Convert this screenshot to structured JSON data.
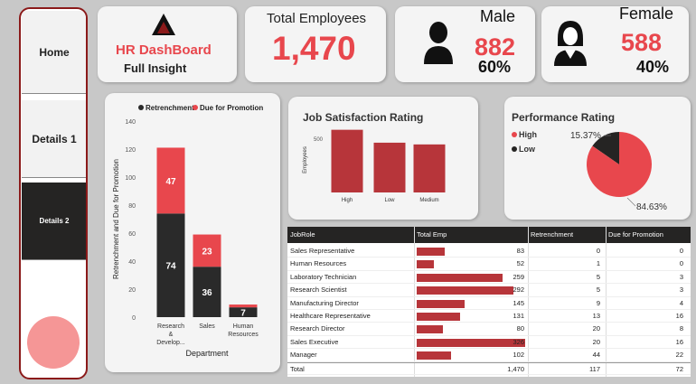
{
  "nav": {
    "items": [
      {
        "label": "Home"
      },
      {
        "label": "Details 1"
      },
      {
        "label": "Details 2"
      }
    ]
  },
  "brand": {
    "title": "HR DashBoard",
    "subtitle": "Full Insight"
  },
  "kpi_total": {
    "title": "Total Employees",
    "value": "1,470"
  },
  "kpi_male": {
    "title": "Male",
    "value": "882",
    "pct": "60%"
  },
  "kpi_female": {
    "title": "Female",
    "value": "588",
    "pct": "40%"
  },
  "colors": {
    "accent_red": "#e8474d",
    "dark": "#252423",
    "bar_red": "#b7353a"
  },
  "chart_data": [
    {
      "type": "bar",
      "stacked": true,
      "legend": [
        "Retrenchment",
        "Due for Promotion"
      ],
      "xlabel": "Department",
      "ylabel": "Retrenchment and Due for Promotion",
      "ylim": [
        0,
        140
      ],
      "yticks": [
        "0",
        "20",
        "40",
        "60",
        "80",
        "100",
        "120",
        "140"
      ],
      "categories": [
        "Research & Develop...",
        "Sales",
        "Human Resources"
      ],
      "series": [
        {
          "name": "Retrenchment",
          "values": [
            74,
            36,
            7
          ],
          "color": "#2a2a2a"
        },
        {
          "name": "Due for Promotion",
          "values": [
            47,
            23,
            2
          ],
          "color": "#e8474d"
        }
      ],
      "data_labels": [
        {
          "series": 0,
          "index": 0,
          "text": "74"
        },
        {
          "series": 1,
          "index": 0,
          "text": "47"
        },
        {
          "series": 0,
          "index": 1,
          "text": "36"
        },
        {
          "series": 1,
          "index": 1,
          "text": "23"
        },
        {
          "series": 0,
          "index": 2,
          "text": "7"
        }
      ]
    },
    {
      "type": "bar",
      "title": "Job Satisfaction Rating",
      "ylabel": "Employees",
      "ylim": [
        0,
        650
      ],
      "yticks": [
        "500"
      ],
      "categories": [
        "High",
        "Low",
        "Medium"
      ],
      "values": [
        578,
        459,
        443
      ]
    },
    {
      "type": "pie",
      "title": "Performance Rating",
      "legend": [
        "High",
        "Low"
      ],
      "categories": [
        "High",
        "Low"
      ],
      "values": [
        84.63,
        15.37
      ],
      "labels": [
        "84.63%",
        "15.37%"
      ],
      "colors": [
        "#e8474d",
        "#252423"
      ]
    }
  ],
  "table": {
    "headers": [
      "JobRole",
      "Total Emp",
      "Retrenchment",
      "Due for Promotion"
    ],
    "rows": [
      {
        "role": "Sales Representative",
        "total": "83",
        "ret": "0",
        "due": "0",
        "totnum": 83
      },
      {
        "role": "Human Resources",
        "total": "52",
        "ret": "1",
        "due": "0",
        "totnum": 52
      },
      {
        "role": "Laboratory Technician",
        "total": "259",
        "ret": "5",
        "due": "3",
        "totnum": 259
      },
      {
        "role": "Research Scientist",
        "total": "292",
        "ret": "5",
        "due": "3",
        "totnum": 292
      },
      {
        "role": "Manufacturing Director",
        "total": "145",
        "ret": "9",
        "due": "4",
        "totnum": 145
      },
      {
        "role": "Healthcare Representative",
        "total": "131",
        "ret": "13",
        "due": "16",
        "totnum": 131
      },
      {
        "role": "Research Director",
        "total": "80",
        "ret": "20",
        "due": "8",
        "totnum": 80
      },
      {
        "role": "Sales Executive",
        "total": "326",
        "ret": "20",
        "due": "16",
        "totnum": 326
      },
      {
        "role": "Manager",
        "total": "102",
        "ret": "44",
        "due": "22",
        "totnum": 102
      }
    ],
    "total_row": {
      "role": "Total",
      "total": "1,470",
      "ret": "117",
      "due": "72"
    }
  }
}
